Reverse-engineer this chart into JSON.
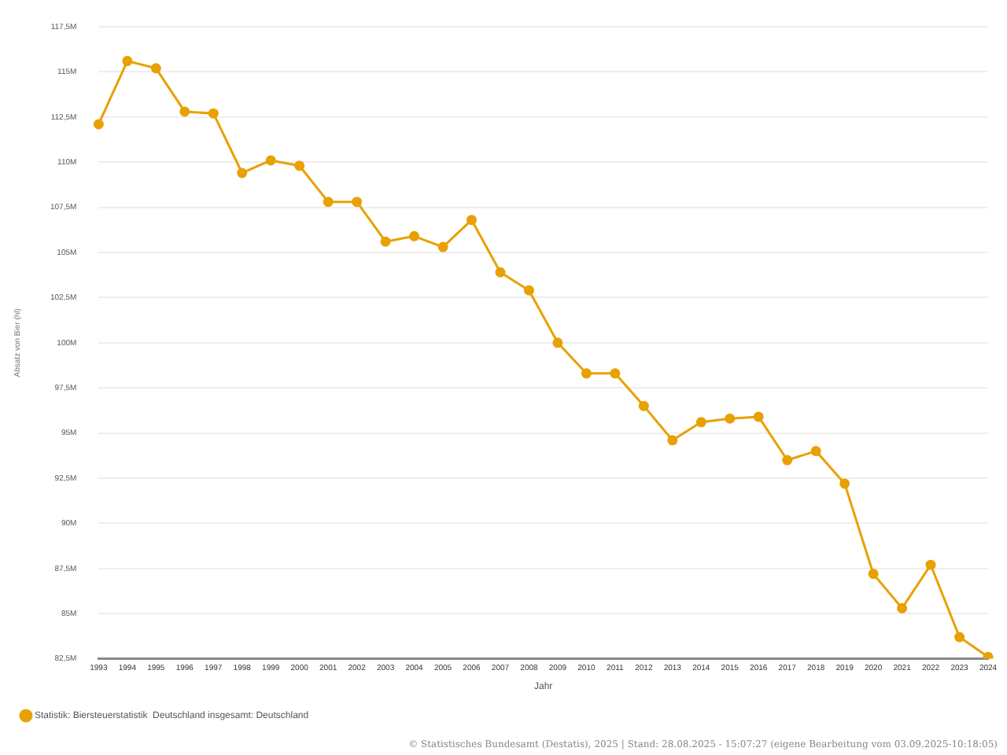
{
  "chart_data": {
    "type": "line",
    "xlabel": "Jahr",
    "ylabel": "Absatz von Bier (hl)",
    "categories": [
      "1993",
      "1994",
      "1995",
      "1996",
      "1997",
      "1998",
      "1999",
      "2000",
      "2001",
      "2002",
      "2003",
      "2004",
      "2005",
      "2006",
      "2007",
      "2008",
      "2009",
      "2010",
      "2011",
      "2012",
      "2013",
      "2014",
      "2015",
      "2016",
      "2017",
      "2018",
      "2019",
      "2020",
      "2021",
      "2022",
      "2023",
      "2024"
    ],
    "series": [
      {
        "name": "Statistik: Biersteuerstatistik  Deutschland insgesamt: Deutschland",
        "color": "#e8a100",
        "values": [
          112.1,
          115.6,
          115.2,
          112.8,
          112.7,
          109.4,
          110.1,
          109.8,
          107.8,
          107.8,
          105.6,
          105.9,
          105.3,
          106.8,
          103.9,
          102.9,
          100.0,
          98.3,
          98.3,
          96.5,
          94.6,
          95.6,
          95.8,
          95.9,
          93.5,
          94.0,
          92.2,
          87.2,
          85.3,
          87.7,
          83.7,
          82.6
        ]
      }
    ],
    "ylim": [
      82.5,
      117.5
    ],
    "yticks": [
      {
        "value": 82.5,
        "label": "82,5M"
      },
      {
        "value": 85,
        "label": "85M"
      },
      {
        "value": 87.5,
        "label": "87,5M"
      },
      {
        "value": 90,
        "label": "90M"
      },
      {
        "value": 92.5,
        "label": "92,5M"
      },
      {
        "value": 95,
        "label": "95M"
      },
      {
        "value": 97.5,
        "label": "97,5M"
      },
      {
        "value": 100,
        "label": "100M"
      },
      {
        "value": 102.5,
        "label": "102,5M"
      },
      {
        "value": 105,
        "label": "105M"
      },
      {
        "value": 107.5,
        "label": "107,5M"
      },
      {
        "value": 110,
        "label": "110M"
      },
      {
        "value": 112.5,
        "label": "112,5M"
      },
      {
        "value": 115,
        "label": "115M"
      },
      {
        "value": 117.5,
        "label": "117,5M"
      }
    ],
    "grid": "y",
    "legend": "bottom left",
    "marker": "circle",
    "line_style": "solid",
    "annotations": [
      "© Statistisches Bundesamt (Destatis), 2025 | Stand: 28.08.2025 - 15:07:27 (eigene Bearbeitung vom 03.09.2025-10:18:05)"
    ]
  }
}
